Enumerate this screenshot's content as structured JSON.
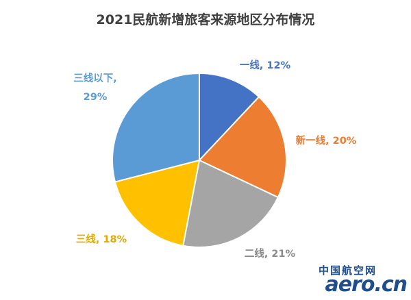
{
  "chart_data": {
    "type": "pie",
    "title": "2021民航新增旅客来源地区分布情况",
    "start_angle_deg": 0,
    "direction": "clockwise",
    "slices": [
      {
        "label": "一线",
        "value": 12,
        "display": "12%",
        "color": "#4472C4",
        "label_color": "#4472C4"
      },
      {
        "label": "新一线",
        "value": 20,
        "display": "20%",
        "color": "#ED7D31",
        "label_color": "#ED7D31"
      },
      {
        "label": "二线",
        "value": 21,
        "display": "21%",
        "color": "#A5A5A5",
        "label_color": "#8A8A8A"
      },
      {
        "label": "三线",
        "value": 18,
        "display": "18%",
        "color": "#FFC000",
        "label_color": "#E0A800"
      },
      {
        "label": "三线以下",
        "value": 29,
        "display": "29%",
        "color": "#5B9BD5",
        "label_color": "#5B9BD5"
      }
    ]
  },
  "watermark": {
    "cn": "中国航空网",
    "en": "aero.cn",
    "color": "#1f4e8c"
  }
}
